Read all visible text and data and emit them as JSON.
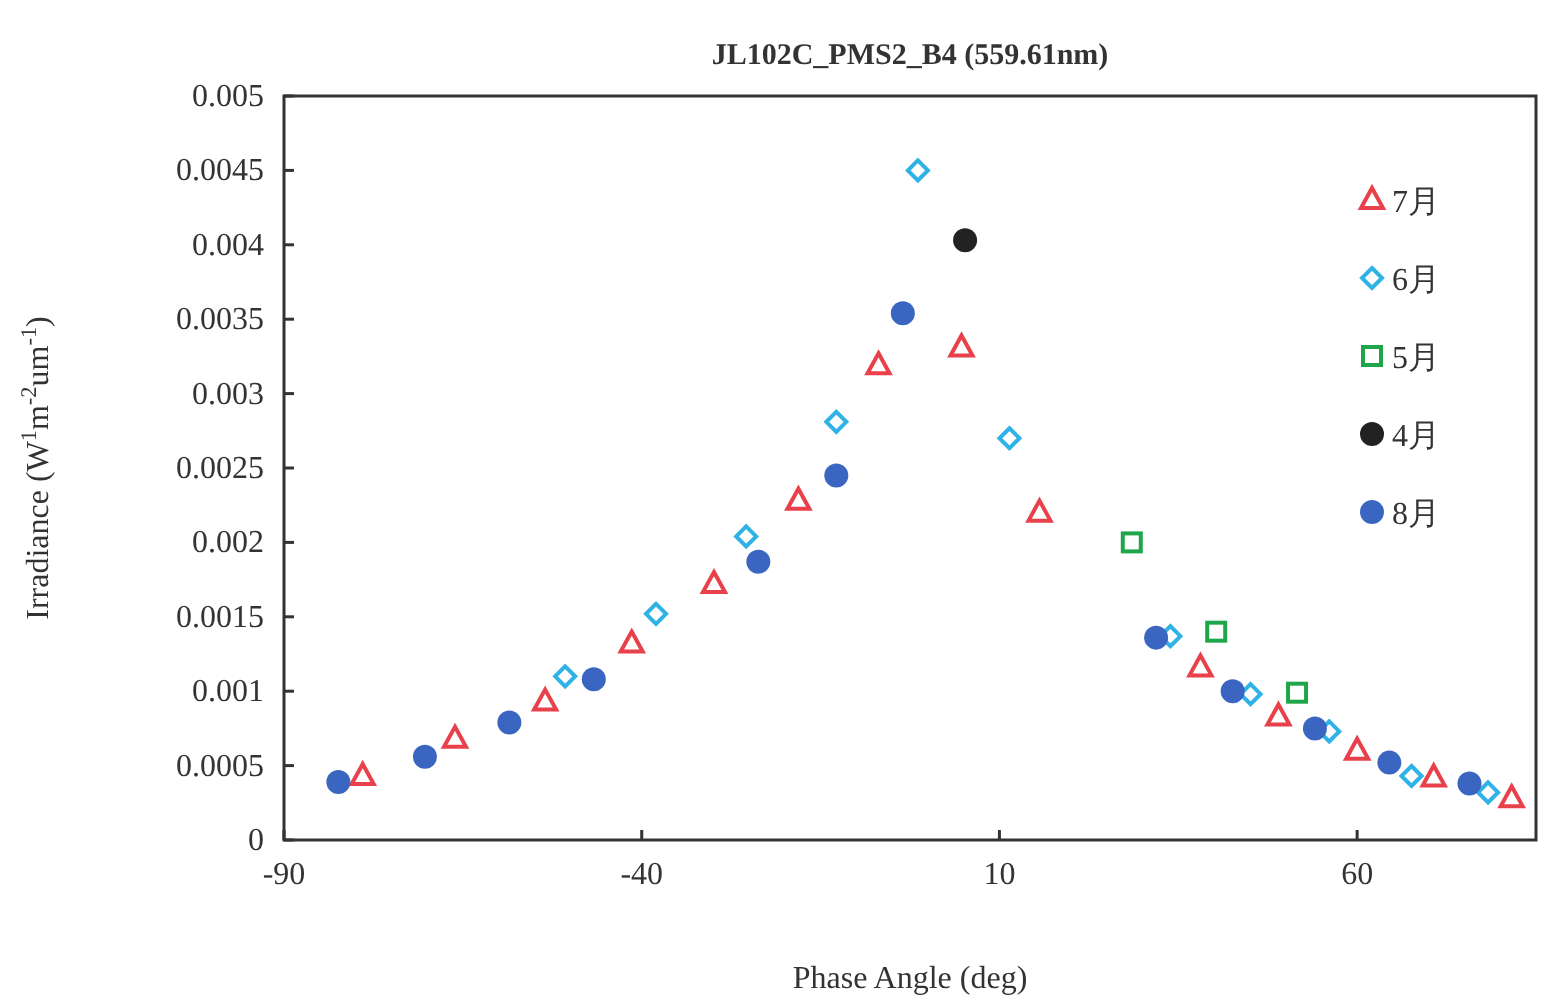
{
  "chart_data": {
    "type": "scatter",
    "title": "JL102C_PMS2_B4 (559.61nm)",
    "xlabel": "Phase Angle (deg)",
    "ylabel": "Irradiance (W$^{1}$m$^{-2}$um$^{-1}$)",
    "xlim": [
      -90,
      85
    ],
    "ylim": [
      0,
      0.005
    ],
    "xticks": [
      -90,
      -40,
      10,
      60
    ],
    "yticks": [
      0,
      0.0005,
      0.001,
      0.0015,
      0.002,
      0.0025,
      0.003,
      0.0035,
      0.004,
      0.0045,
      0.005
    ],
    "grid": false,
    "legend": "top right",
    "series": [
      {
        "name": "7月",
        "color": "#e8414b",
        "marker": "triangle",
        "x": [
          -79,
          -66.1,
          -53.5,
          -41.4,
          -29.9,
          -18.1,
          -6.9,
          4.7,
          15.6,
          38.1,
          49.0,
          60.0,
          70.7,
          81.6
        ],
        "values": [
          0.00043,
          0.00068,
          0.00093,
          0.00132,
          0.00172,
          0.00228,
          0.00319,
          0.00331,
          0.0022,
          0.00116,
          0.00083,
          0.0006,
          0.00042,
          0.00028
        ]
      },
      {
        "name": "6月",
        "color": "#2fb2e6",
        "marker": "diamond",
        "x": [
          -50.7,
          -38.0,
          -25.4,
          -12.8,
          -1.4,
          11.4,
          33.9,
          45.1,
          56.1,
          67.6,
          78.3
        ],
        "values": [
          0.0011,
          0.00152,
          0.00204,
          0.00281,
          0.0045,
          0.0027,
          0.00137,
          0.00098,
          0.00073,
          0.00043,
          0.00032
        ]
      },
      {
        "name": "5月",
        "color": "#1fa64a",
        "marker": "square",
        "x": [
          28.5,
          40.3,
          51.6
        ],
        "values": [
          0.002,
          0.0014,
          0.00099
        ]
      },
      {
        "name": "4月",
        "color": "#222222",
        "marker": "circle",
        "x": [
          5.2
        ],
        "values": [
          0.00403
        ]
      },
      {
        "name": "8月",
        "color": "#3a66c2",
        "marker": "circle",
        "x": [
          -82.4,
          -70.3,
          -58.5,
          -46.7,
          -23.7,
          -12.8,
          -3.5,
          31.9,
          42.6,
          54.1,
          64.5,
          75.7
        ],
        "values": [
          0.00039,
          0.00056,
          0.00079,
          0.00108,
          0.00187,
          0.00245,
          0.00354,
          0.00136,
          0.001,
          0.00075,
          0.00052,
          0.00038
        ]
      }
    ]
  }
}
